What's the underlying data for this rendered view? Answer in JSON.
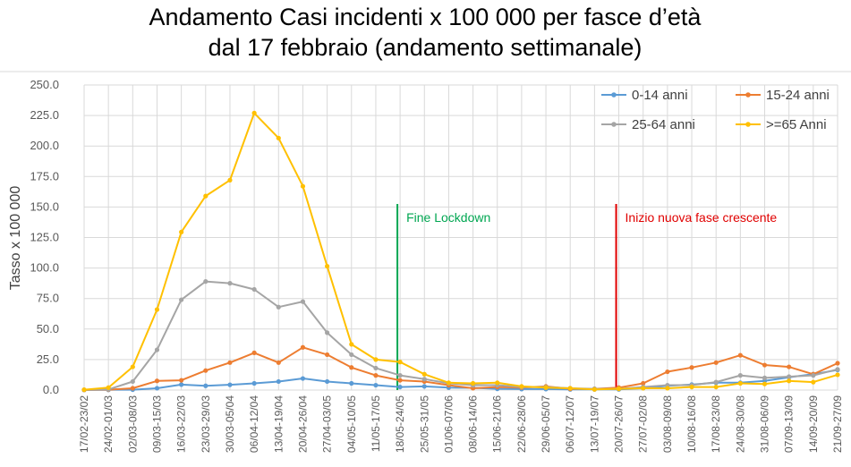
{
  "chart_data": {
    "type": "line",
    "title_line1": "Andamento Casi incidenti x 100 000 per fasce d’età",
    "title_line2": "dal 17 febbraio (andamento settimanale)",
    "ylabel": "Tasso x 100 000",
    "xlabel": "",
    "ylim": [
      0,
      250
    ],
    "yticks": [
      "0.0",
      "25.0",
      "50.0",
      "75.0",
      "100.0",
      "125.0",
      "150.0",
      "175.0",
      "200.0",
      "225.0",
      "250.0"
    ],
    "grid": true,
    "legend_position": "top-right",
    "categories": [
      "17/02-23/02",
      "24/02-01/03",
      "02/03-08/03",
      "09/03-15/03",
      "16/03-22/03",
      "23/03-29/03",
      "30/03-05/04",
      "06/04-12/04",
      "13/04-19/04",
      "20/04-26/04",
      "27/04-03/05",
      "04/05-10/05",
      "11/05-17/05",
      "18/05-24/05",
      "25/05-31/05",
      "01/06-07/06",
      "08/06-14/06",
      "15/06-21/06",
      "22/06-28/06",
      "29/06-05/07",
      "06/07-12/07",
      "13/07-19/07",
      "20/07-26/07",
      "27/07-02/08",
      "03/08-09/08",
      "10/08-16/08",
      "17/08-23/08",
      "24/08-30/08",
      "31/08-06/09",
      "07/09-13/09",
      "14/09-20/09",
      "21/09-27/09"
    ],
    "series": [
      {
        "name": "0-14 anni",
        "color": "#5B9BD5",
        "values": [
          0.1,
          0.2,
          0.3,
          1.5,
          4.5,
          3.5,
          4.3,
          5.5,
          7.0,
          9.5,
          7.0,
          5.5,
          4.0,
          2.5,
          3.0,
          2.0,
          1.8,
          1.0,
          0.8,
          0.8,
          0.5,
          0.5,
          0.5,
          1.5,
          3.5,
          4.5,
          6.0,
          6.0,
          7.5,
          10.5,
          13.0,
          16.5
        ]
      },
      {
        "name": "15-24 anni",
        "color": "#ED7D31",
        "values": [
          0.1,
          0.3,
          1.5,
          7.5,
          8.0,
          16.0,
          22.5,
          30.5,
          22.5,
          35.0,
          29.0,
          18.5,
          12.0,
          8.0,
          7.0,
          4.0,
          1.5,
          2.5,
          2.0,
          3.0,
          1.0,
          1.0,
          2.0,
          5.5,
          15.0,
          18.5,
          22.5,
          28.5,
          20.5,
          19.0,
          13.0,
          22.0
        ]
      },
      {
        "name": "25-64 anni",
        "color": "#A5A5A5",
        "values": [
          0.1,
          0.5,
          7.0,
          33.0,
          74.0,
          89.0,
          87.5,
          82.5,
          68.0,
          72.5,
          47.0,
          29.0,
          18.0,
          12.0,
          9.0,
          5.5,
          4.0,
          4.0,
          2.5,
          2.5,
          1.5,
          1.0,
          1.0,
          2.5,
          4.0,
          4.0,
          6.5,
          12.0,
          10.0,
          11.0,
          12.0,
          17.0
        ]
      },
      {
        "name": ">=65 Anni",
        "color": "#FFC000",
        "values": [
          0.3,
          2.0,
          19.0,
          66.0,
          129.5,
          159.0,
          172.0,
          227.0,
          206.5,
          167.0,
          101.5,
          37.5,
          25.0,
          23.0,
          13.0,
          6.0,
          5.5,
          6.0,
          3.0,
          2.0,
          1.5,
          0.5,
          1.0,
          1.5,
          1.5,
          2.5,
          2.5,
          5.5,
          5.0,
          7.5,
          6.5,
          12.5
        ]
      }
    ],
    "annotations": [
      {
        "text": "Fine Lockdown",
        "category": "18/05-24/05",
        "color": "#00A651"
      },
      {
        "text": "Inizio nuova fase crescente",
        "category": "20/07-26/07",
        "color": "#E00000"
      }
    ]
  }
}
